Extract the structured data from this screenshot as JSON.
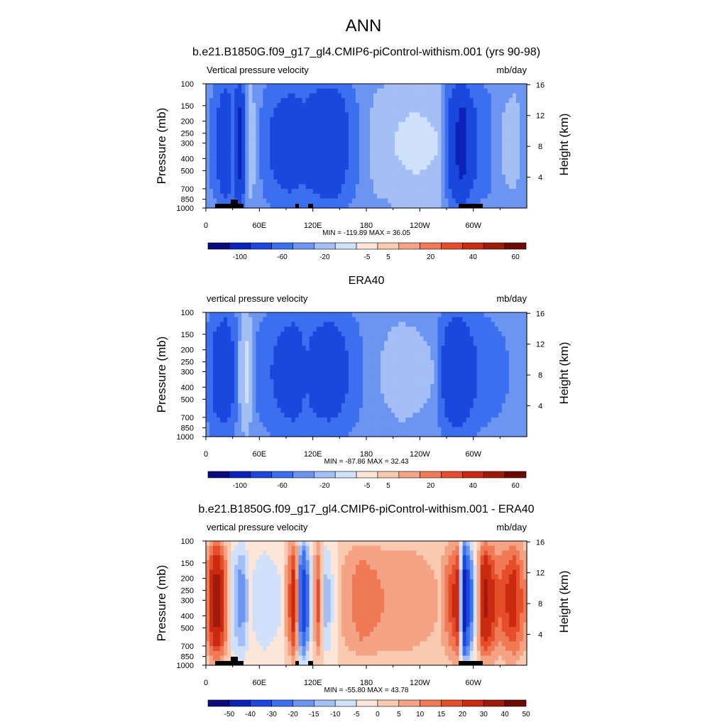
{
  "figure": {
    "title": "ANN"
  },
  "shared_axes": {
    "pressure_ticks": [
      "100",
      "150",
      "200",
      "250",
      "300",
      "400",
      "500",
      "700",
      "850",
      "1000"
    ],
    "height_ticks": [
      "4",
      "8",
      "12",
      "16"
    ],
    "lon_ticks": [
      "0",
      "60E",
      "120E",
      "180",
      "120W",
      "60W"
    ],
    "ylabel": "Pressure (mb)",
    "ylabel_right": "Height (km)"
  },
  "chart_data": [
    {
      "type": "heatmap",
      "title": "b.e21.B1850G.f09_g17_gl4.CMIP6-piControl-withism.001 (yrs 90-98)",
      "left_label": "Vertical pressure velocity",
      "units": "mb/day",
      "stats": "MIN = -119.89  MAX =  36.05",
      "colorbar_ticks": [
        "-100",
        "-60",
        "-20",
        "-5",
        "5",
        "20",
        "40",
        "60"
      ],
      "colors": [
        "#0a0a7a",
        "#0b23b8",
        "#1b48dc",
        "#3c6ff0",
        "#6b95f0",
        "#a3bff5",
        "#cfe1fb",
        "#fde5d8",
        "#f9c9b0",
        "#f4a385",
        "#f07a55",
        "#e64d2a",
        "#c92a10",
        "#9e1a0a",
        "#6e0a04"
      ],
      "ylim": [
        1000,
        100
      ],
      "features": [
        {
          "lon": 0,
          "v": 2
        },
        {
          "lon": 12,
          "v": -20
        },
        {
          "lon": 22,
          "v": -60
        },
        {
          "lon": 30,
          "v": -20
        },
        {
          "lon": 38,
          "v": -80
        },
        {
          "lon": 48,
          "v": 20
        },
        {
          "lon": 58,
          "v": -1
        },
        {
          "lon": 75,
          "v": -25
        },
        {
          "lon": 95,
          "v": -40
        },
        {
          "lon": 110,
          "v": -30
        },
        {
          "lon": 130,
          "v": -50
        },
        {
          "lon": 145,
          "v": -50
        },
        {
          "lon": 160,
          "v": -20
        },
        {
          "lon": 172,
          "v": -5
        },
        {
          "lon": 190,
          "v": 10
        },
        {
          "lon": 210,
          "v": 20
        },
        {
          "lon": 235,
          "v": 25
        },
        {
          "lon": 262,
          "v": 20
        },
        {
          "lon": 280,
          "v": -60
        },
        {
          "lon": 288,
          "v": -90
        },
        {
          "lon": 296,
          "v": -40
        },
        {
          "lon": 305,
          "v": -20
        },
        {
          "lon": 318,
          "v": -10
        },
        {
          "lon": 330,
          "v": 5
        },
        {
          "lon": 345,
          "v": 10
        },
        {
          "lon": 359,
          "v": 2
        }
      ]
    },
    {
      "type": "heatmap",
      "title": "ERA40",
      "left_label": "vertical pressure velocity",
      "units": "mb/day",
      "stats": "MIN = -87.86  MAX =  32.43",
      "colorbar_ticks": [
        "-100",
        "-60",
        "-20",
        "-5",
        "5",
        "20",
        "40",
        "60"
      ],
      "colors": [
        "#0a0a7a",
        "#0b23b8",
        "#1b48dc",
        "#3c6ff0",
        "#6b95f0",
        "#a3bff5",
        "#cfe1fb",
        "#fde5d8",
        "#f9c9b0",
        "#f4a385",
        "#f07a55",
        "#e64d2a",
        "#c92a10",
        "#9e1a0a",
        "#6e0a04"
      ],
      "ylim": [
        1000,
        100
      ],
      "features": [
        {
          "lon": 0,
          "v": -5
        },
        {
          "lon": 10,
          "v": -30
        },
        {
          "lon": 22,
          "v": -45
        },
        {
          "lon": 32,
          "v": -20
        },
        {
          "lon": 40,
          "v": 15
        },
        {
          "lon": 46,
          "v": 25
        },
        {
          "lon": 55,
          "v": -5
        },
        {
          "lon": 68,
          "v": -15
        },
        {
          "lon": 85,
          "v": -30
        },
        {
          "lon": 100,
          "v": -40
        },
        {
          "lon": 112,
          "v": -20
        },
        {
          "lon": 125,
          "v": -35
        },
        {
          "lon": 140,
          "v": -40
        },
        {
          "lon": 160,
          "v": -20
        },
        {
          "lon": 178,
          "v": -3
        },
        {
          "lon": 195,
          "v": 5
        },
        {
          "lon": 220,
          "v": 10
        },
        {
          "lon": 255,
          "v": 5
        },
        {
          "lon": 280,
          "v": -60
        },
        {
          "lon": 292,
          "v": -35
        },
        {
          "lon": 305,
          "v": -20
        },
        {
          "lon": 320,
          "v": -10
        },
        {
          "lon": 340,
          "v": -5
        },
        {
          "lon": 359,
          "v": -3
        }
      ]
    },
    {
      "type": "heatmap",
      "title": "b.e21.B1850G.f09_g17_gl4.CMIP6-piControl-withism.001 - ERA40",
      "left_label": "vertical pressure velocity",
      "units": "mb/day",
      "stats": "MIN = -55.80  MAX =  43.78",
      "colorbar_ticks": [
        "-50",
        "-40",
        "-30",
        "-20",
        "-15",
        "-10",
        "-5",
        "0",
        "5",
        "10",
        "15",
        "20",
        "30",
        "40",
        "50"
      ],
      "colors": [
        "#0a0a7a",
        "#0b23b8",
        "#1b48dc",
        "#3c6ff0",
        "#6b95f0",
        "#a3bff5",
        "#cfe1fb",
        "#fde5d8",
        "#f9c9b0",
        "#f4a385",
        "#f07a55",
        "#e64d2a",
        "#c92a10",
        "#9e1a0a",
        "#6e0a04"
      ],
      "ylim": [
        1000,
        100
      ],
      "features": [
        {
          "lon": 0,
          "v": 10
        },
        {
          "lon": 12,
          "v": 40
        },
        {
          "lon": 22,
          "v": 15
        },
        {
          "lon": 30,
          "v": -10
        },
        {
          "lon": 40,
          "v": -20
        },
        {
          "lon": 50,
          "v": -5
        },
        {
          "lon": 65,
          "v": -10
        },
        {
          "lon": 85,
          "v": -5
        },
        {
          "lon": 100,
          "v": 30
        },
        {
          "lon": 108,
          "v": -45
        },
        {
          "lon": 115,
          "v": -20
        },
        {
          "lon": 125,
          "v": 20
        },
        {
          "lon": 135,
          "v": -15
        },
        {
          "lon": 150,
          "v": 5
        },
        {
          "lon": 175,
          "v": 15
        },
        {
          "lon": 200,
          "v": 10
        },
        {
          "lon": 230,
          "v": 10
        },
        {
          "lon": 262,
          "v": 5
        },
        {
          "lon": 282,
          "v": 25
        },
        {
          "lon": 290,
          "v": -50
        },
        {
          "lon": 300,
          "v": -15
        },
        {
          "lon": 312,
          "v": 35
        },
        {
          "lon": 328,
          "v": 15
        },
        {
          "lon": 345,
          "v": 25
        },
        {
          "lon": 359,
          "v": 10
        }
      ]
    }
  ]
}
